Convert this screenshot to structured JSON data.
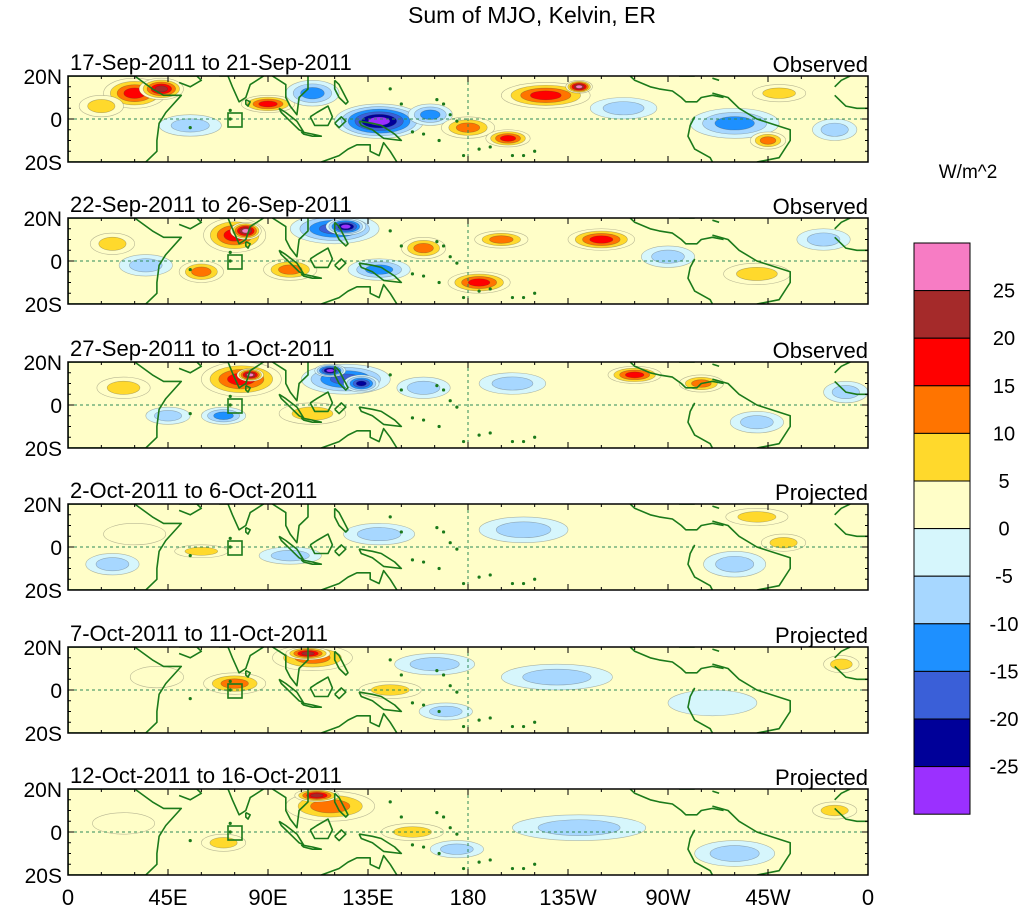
{
  "figure": {
    "title": "Sum of MJO, Kelvin, ER",
    "colorbar_units": "W/m^2"
  },
  "chart_data": {
    "type": "heatmap",
    "title": "Sum of MJO, Kelvin, ER",
    "variable_units": "W/m^2",
    "x_ticks": [
      "0",
      "45E",
      "90E",
      "135E",
      "180",
      "135W",
      "90W",
      "45W",
      "0"
    ],
    "x_tick_longitudes": [
      0,
      45,
      90,
      135,
      180,
      225,
      270,
      315,
      360
    ],
    "y_ticks": [
      "20N",
      "0",
      "20S"
    ],
    "y_tick_latitudes": [
      20,
      0,
      -20
    ],
    "xlim": [
      0,
      360
    ],
    "ylim": [
      -20,
      20
    ],
    "colorbar": {
      "tick_labels": [
        "25",
        "20",
        "15",
        "10",
        "5",
        "0",
        "-5",
        "-10",
        "-15",
        "-20",
        "-25"
      ],
      "levels": [
        {
          "range": [
            25,
            30
          ],
          "color": "#f77cc4"
        },
        {
          "range": [
            20,
            25
          ],
          "color": "#a52a2a"
        },
        {
          "range": [
            15,
            20
          ],
          "color": "#ff0000"
        },
        {
          "range": [
            10,
            15
          ],
          "color": "#ff7400"
        },
        {
          "range": [
            5,
            10
          ],
          "color": "#ffd92c"
        },
        {
          "range": [
            0,
            5
          ],
          "color": "#fffec8"
        },
        {
          "range": [
            -5,
            0
          ],
          "color": "#d6f6fc"
        },
        {
          "range": [
            -10,
            -5
          ],
          "color": "#a7d7ff"
        },
        {
          "range": [
            -15,
            -10
          ],
          "color": "#1e90ff"
        },
        {
          "range": [
            -20,
            -15
          ],
          "color": "#3a5fd8"
        },
        {
          "range": [
            -25,
            -20
          ],
          "color": "#000099"
        },
        {
          "range": [
            -30,
            -25
          ],
          "color": "#9b30ff"
        }
      ]
    },
    "panels": [
      {
        "period": "17-Sep-2011 to 21-Sep-2011",
        "type": "Observed",
        "blobs": [
          {
            "lon": 30,
            "lat": 12,
            "rx": 14,
            "ry": 7,
            "value": 17
          },
          {
            "lon": 42,
            "lat": 14,
            "rx": 10,
            "ry": 5,
            "value": 23
          },
          {
            "lon": 15,
            "lat": 6,
            "rx": 10,
            "ry": 5,
            "value": 8
          },
          {
            "lon": 55,
            "lat": -3,
            "rx": 14,
            "ry": 5,
            "value": -8
          },
          {
            "lon": 90,
            "lat": 7,
            "rx": 12,
            "ry": 4,
            "value": 16
          },
          {
            "lon": 110,
            "lat": 12,
            "rx": 12,
            "ry": 6,
            "value": -12
          },
          {
            "lon": 140,
            "lat": -1,
            "rx": 20,
            "ry": 8,
            "value": -28
          },
          {
            "lon": 163,
            "lat": 2,
            "rx": 10,
            "ry": 5,
            "value": -12
          },
          {
            "lon": 180,
            "lat": -4,
            "rx": 12,
            "ry": 5,
            "value": 13
          },
          {
            "lon": 198,
            "lat": -9,
            "rx": 10,
            "ry": 4,
            "value": 16
          },
          {
            "lon": 215,
            "lat": 11,
            "rx": 20,
            "ry": 6,
            "value": 17
          },
          {
            "lon": 230,
            "lat": 15,
            "rx": 6,
            "ry": 3,
            "value": 27
          },
          {
            "lon": 250,
            "lat": 5,
            "rx": 15,
            "ry": 5,
            "value": -8
          },
          {
            "lon": 300,
            "lat": -2,
            "rx": 20,
            "ry": 7,
            "value": -12
          },
          {
            "lon": 315,
            "lat": -10,
            "rx": 8,
            "ry": 4,
            "value": 12
          },
          {
            "lon": 320,
            "lat": 12,
            "rx": 12,
            "ry": 4,
            "value": 8
          },
          {
            "lon": 345,
            "lat": -5,
            "rx": 10,
            "ry": 5,
            "value": -6
          }
        ]
      },
      {
        "period": "22-Sep-2011 to 26-Sep-2011",
        "type": "Observed",
        "blobs": [
          {
            "lon": 20,
            "lat": 8,
            "rx": 10,
            "ry": 5,
            "value": 8
          },
          {
            "lon": 35,
            "lat": -2,
            "rx": 12,
            "ry": 5,
            "value": -9
          },
          {
            "lon": 75,
            "lat": 12,
            "rx": 14,
            "ry": 8,
            "value": 18
          },
          {
            "lon": 80,
            "lat": 14,
            "rx": 7,
            "ry": 4,
            "value": 27
          },
          {
            "lon": 60,
            "lat": -5,
            "rx": 10,
            "ry": 5,
            "value": 12
          },
          {
            "lon": 100,
            "lat": -4,
            "rx": 12,
            "ry": 5,
            "value": 14
          },
          {
            "lon": 120,
            "lat": 15,
            "rx": 20,
            "ry": 7,
            "value": -18
          },
          {
            "lon": 125,
            "lat": 16,
            "rx": 9,
            "ry": 4,
            "value": -27
          },
          {
            "lon": 140,
            "lat": -4,
            "rx": 14,
            "ry": 5,
            "value": -14
          },
          {
            "lon": 160,
            "lat": 6,
            "rx": 10,
            "ry": 5,
            "value": 12
          },
          {
            "lon": 185,
            "lat": -10,
            "rx": 14,
            "ry": 5,
            "value": 17
          },
          {
            "lon": 195,
            "lat": 10,
            "rx": 12,
            "ry": 4,
            "value": 14
          },
          {
            "lon": 240,
            "lat": 10,
            "rx": 15,
            "ry": 5,
            "value": 16
          },
          {
            "lon": 270,
            "lat": 2,
            "rx": 12,
            "ry": 5,
            "value": -9
          },
          {
            "lon": 310,
            "lat": -6,
            "rx": 15,
            "ry": 5,
            "value": 8
          },
          {
            "lon": 340,
            "lat": 10,
            "rx": 12,
            "ry": 5,
            "value": -7
          }
        ]
      },
      {
        "period": "27-Sep-2011 to 1-Oct-2011",
        "type": "Observed",
        "blobs": [
          {
            "lon": 25,
            "lat": 8,
            "rx": 12,
            "ry": 5,
            "value": 8
          },
          {
            "lon": 45,
            "lat": -5,
            "rx": 10,
            "ry": 4,
            "value": -9
          },
          {
            "lon": 78,
            "lat": 12,
            "rx": 18,
            "ry": 8,
            "value": 17
          },
          {
            "lon": 82,
            "lat": 14,
            "rx": 6,
            "ry": 3,
            "value": 26
          },
          {
            "lon": 70,
            "lat": -5,
            "rx": 10,
            "ry": 4,
            "value": -12
          },
          {
            "lon": 110,
            "lat": -4,
            "rx": 15,
            "ry": 5,
            "value": 9
          },
          {
            "lon": 125,
            "lat": 12,
            "rx": 20,
            "ry": 7,
            "value": -17
          },
          {
            "lon": 132,
            "lat": 10,
            "rx": 8,
            "ry": 4,
            "value": -23
          },
          {
            "lon": 118,
            "lat": 16,
            "rx": 7,
            "ry": 3,
            "value": -27
          },
          {
            "lon": 160,
            "lat": 8,
            "rx": 12,
            "ry": 5,
            "value": -9
          },
          {
            "lon": 200,
            "lat": 10,
            "rx": 15,
            "ry": 5,
            "value": -6
          },
          {
            "lon": 255,
            "lat": 14,
            "rx": 12,
            "ry": 4,
            "value": 17
          },
          {
            "lon": 285,
            "lat": 10,
            "rx": 10,
            "ry": 4,
            "value": 12
          },
          {
            "lon": 310,
            "lat": -8,
            "rx": 12,
            "ry": 5,
            "value": -8
          },
          {
            "lon": 350,
            "lat": 6,
            "rx": 10,
            "ry": 5,
            "value": -6
          }
        ]
      },
      {
        "period": "2-Oct-2011 to 6-Oct-2011",
        "type": "Projected",
        "blobs": [
          {
            "lon": 30,
            "lat": 6,
            "rx": 14,
            "ry": 5,
            "value": 4
          },
          {
            "lon": 20,
            "lat": -8,
            "rx": 12,
            "ry": 5,
            "value": -7
          },
          {
            "lon": 60,
            "lat": -2,
            "rx": 12,
            "ry": 3,
            "value": 8
          },
          {
            "lon": 100,
            "lat": -4,
            "rx": 14,
            "ry": 4,
            "value": -8
          },
          {
            "lon": 140,
            "lat": 6,
            "rx": 16,
            "ry": 5,
            "value": -6
          },
          {
            "lon": 205,
            "lat": 8,
            "rx": 20,
            "ry": 6,
            "value": -6
          },
          {
            "lon": 310,
            "lat": 14,
            "rx": 14,
            "ry": 4,
            "value": 8
          },
          {
            "lon": 300,
            "lat": -8,
            "rx": 14,
            "ry": 6,
            "value": -9
          },
          {
            "lon": 322,
            "lat": 2,
            "rx": 10,
            "ry": 4,
            "value": 6
          }
        ]
      },
      {
        "period": "7-Oct-2011 to 11-Oct-2011",
        "type": "Projected",
        "blobs": [
          {
            "lon": 40,
            "lat": 6,
            "rx": 12,
            "ry": 5,
            "value": 4
          },
          {
            "lon": 75,
            "lat": 3,
            "rx": 14,
            "ry": 5,
            "value": 12
          },
          {
            "lon": 110,
            "lat": 15,
            "rx": 18,
            "ry": 6,
            "value": 14
          },
          {
            "lon": 108,
            "lat": 17,
            "rx": 10,
            "ry": 3,
            "value": 22
          },
          {
            "lon": 145,
            "lat": 0,
            "rx": 14,
            "ry": 4,
            "value": 8
          },
          {
            "lon": 170,
            "lat": -10,
            "rx": 12,
            "ry": 4,
            "value": -8
          },
          {
            "lon": 165,
            "lat": 12,
            "rx": 18,
            "ry": 5,
            "value": -6
          },
          {
            "lon": 220,
            "lat": 6,
            "rx": 25,
            "ry": 6,
            "value": -6
          },
          {
            "lon": 290,
            "lat": -6,
            "rx": 20,
            "ry": 6,
            "value": -5
          },
          {
            "lon": 348,
            "lat": 12,
            "rx": 8,
            "ry": 4,
            "value": 8
          }
        ]
      },
      {
        "period": "12-Oct-2011 to 16-Oct-2011",
        "type": "Projected",
        "blobs": [
          {
            "lon": 25,
            "lat": 4,
            "rx": 14,
            "ry": 5,
            "value": 3
          },
          {
            "lon": 70,
            "lat": -5,
            "rx": 10,
            "ry": 4,
            "value": 8
          },
          {
            "lon": 118,
            "lat": 12,
            "rx": 20,
            "ry": 7,
            "value": 12
          },
          {
            "lon": 112,
            "lat": 17,
            "rx": 10,
            "ry": 3,
            "value": 22
          },
          {
            "lon": 155,
            "lat": 0,
            "rx": 14,
            "ry": 4,
            "value": 7
          },
          {
            "lon": 175,
            "lat": -8,
            "rx": 12,
            "ry": 4,
            "value": -7
          },
          {
            "lon": 230,
            "lat": 2,
            "rx": 30,
            "ry": 6,
            "value": -6
          },
          {
            "lon": 300,
            "lat": -10,
            "rx": 18,
            "ry": 6,
            "value": -7
          },
          {
            "lon": 345,
            "lat": 10,
            "rx": 10,
            "ry": 4,
            "value": 6
          }
        ]
      }
    ]
  }
}
